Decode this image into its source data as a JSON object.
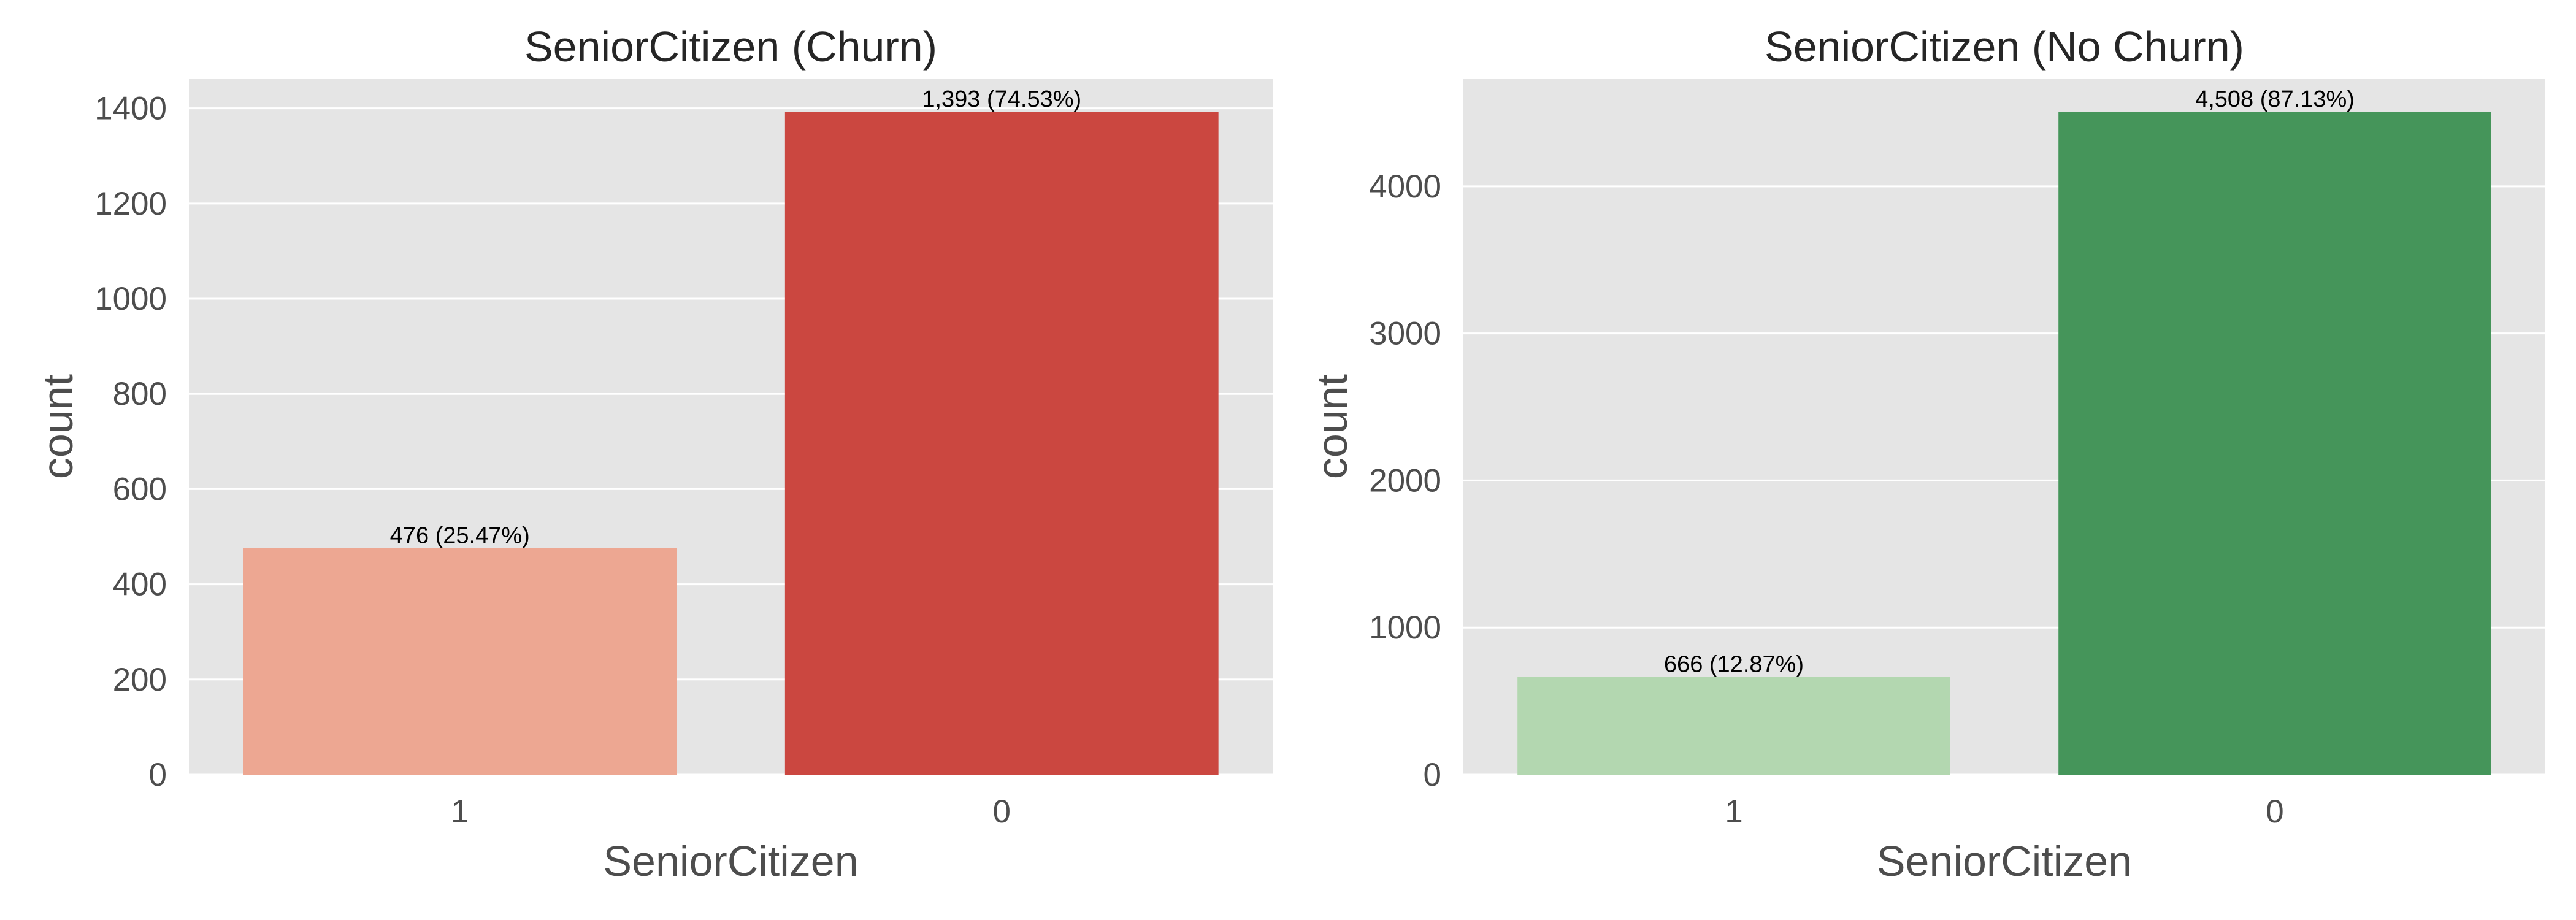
{
  "chart_data": [
    {
      "type": "bar",
      "title": "SeniorCitizen (Churn)",
      "xlabel": "SeniorCitizen",
      "ylabel": "count",
      "categories": [
        "1",
        "0"
      ],
      "values": [
        476,
        1393
      ],
      "data_labels": [
        "476 (25.47%)",
        "1,393 (74.53%)"
      ],
      "colors": [
        "#eda792",
        "#cb4740"
      ],
      "ylim": [
        0,
        1462.65
      ],
      "yticks": [
        0,
        200,
        400,
        600,
        800,
        1000,
        1200,
        1400
      ],
      "grid": true,
      "legend": "none"
    },
    {
      "type": "bar",
      "title": "SeniorCitizen (No Churn)",
      "xlabel": "SeniorCitizen",
      "ylabel": "count",
      "categories": [
        "1",
        "0"
      ],
      "values": [
        666,
        4508
      ],
      "data_labels": [
        "666 (12.87%)",
        "4,508 (87.13%)"
      ],
      "colors": [
        "#b3d7b0",
        "#45955a"
      ],
      "ylim": [
        0,
        4733.4
      ],
      "yticks": [
        0,
        1000,
        2000,
        3000,
        4000
      ],
      "grid": true,
      "legend": "none"
    }
  ]
}
